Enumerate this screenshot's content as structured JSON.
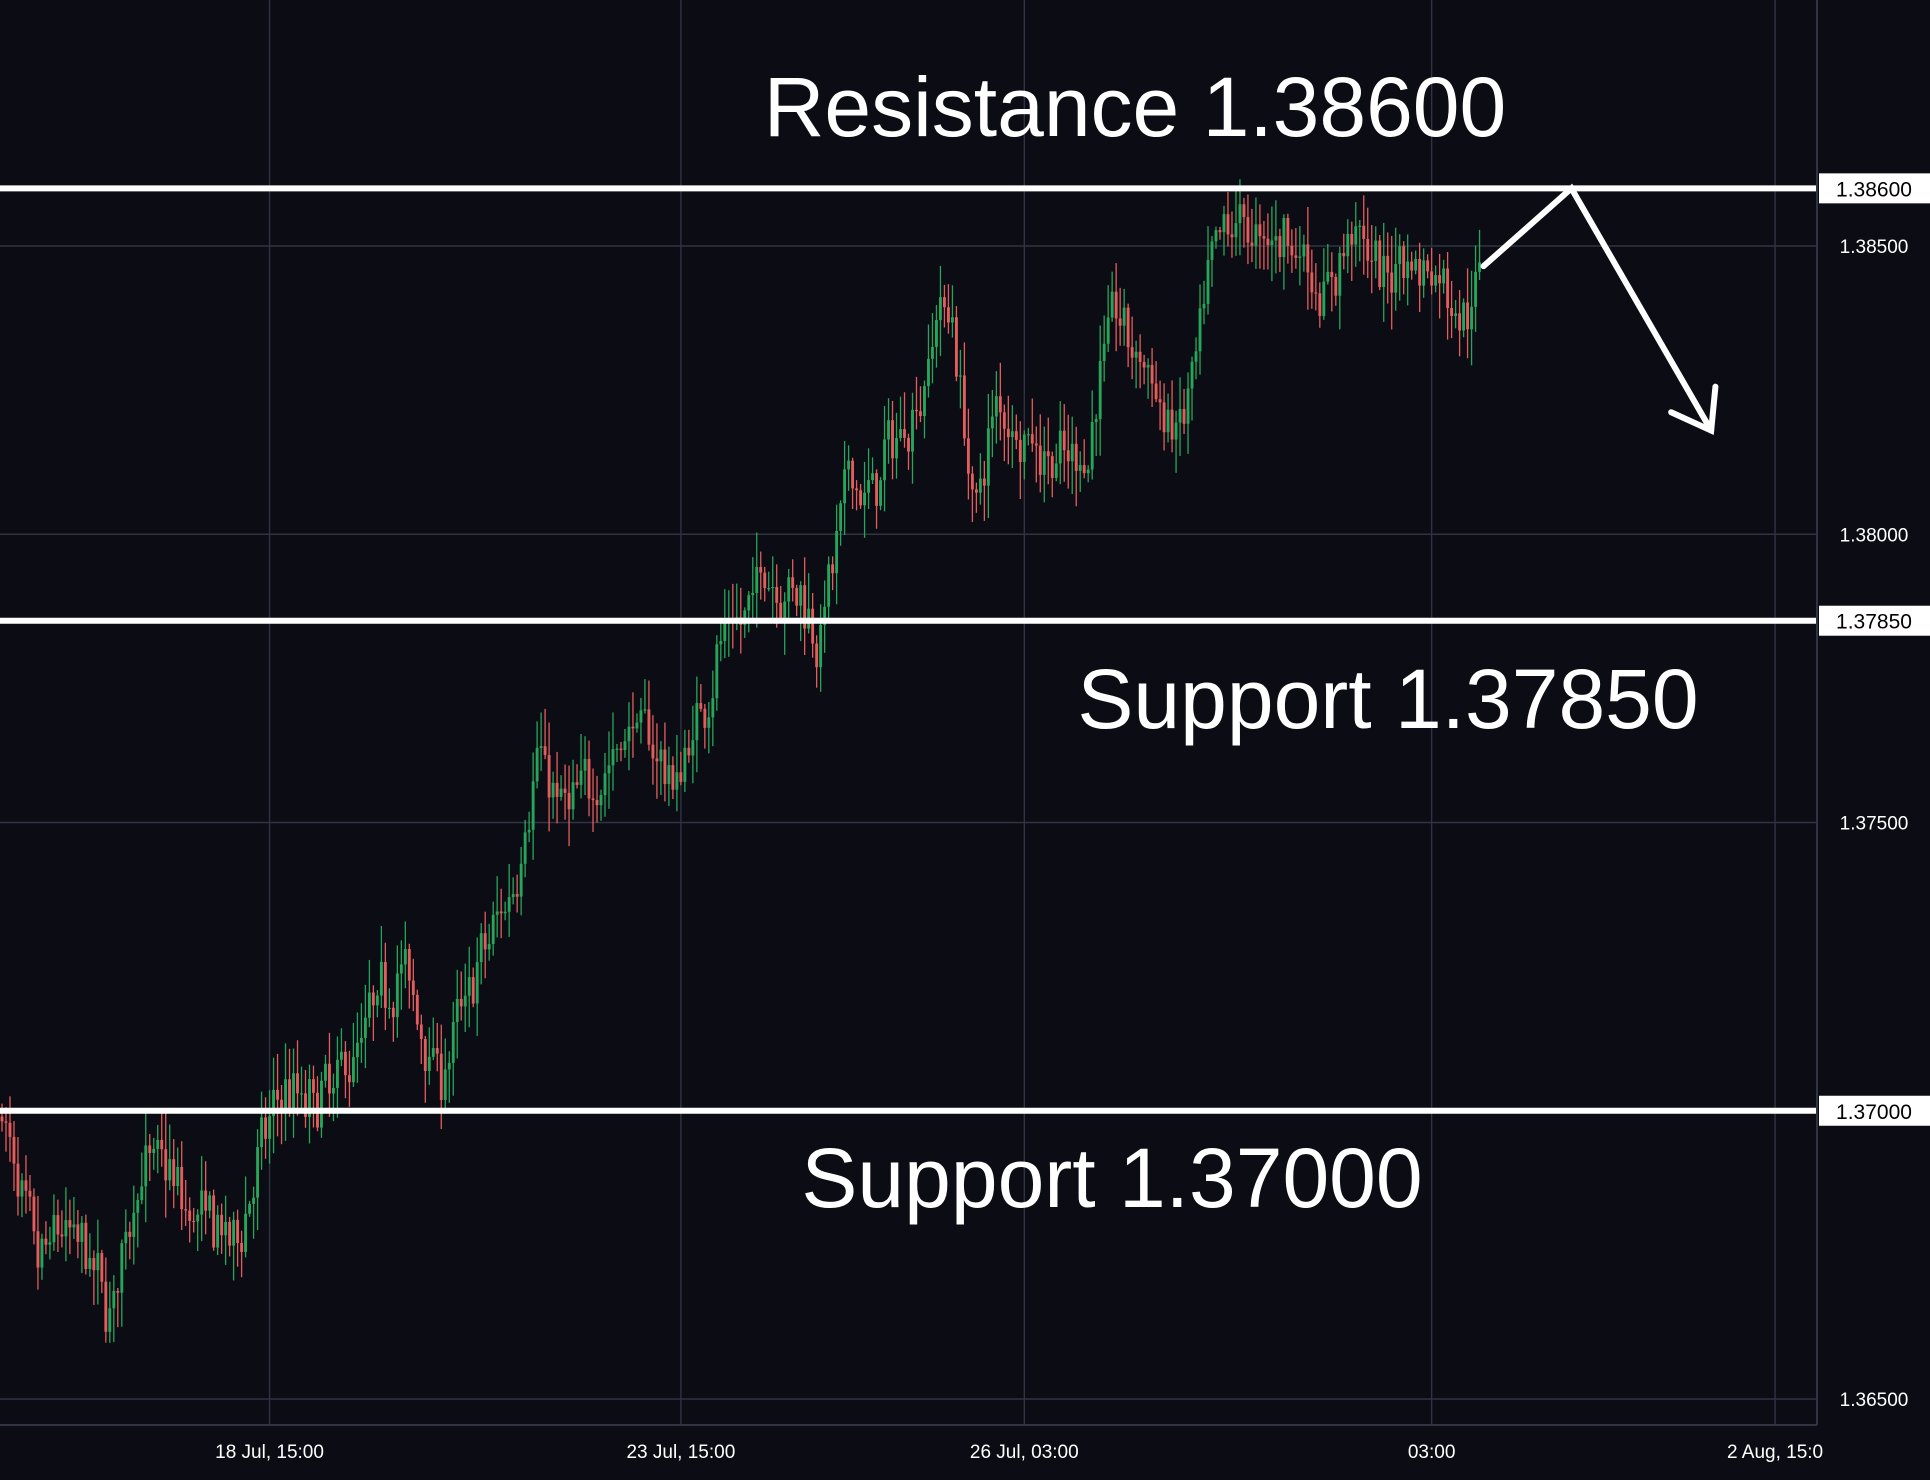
{
  "colors": {
    "background": "#0c0c14",
    "grid": "#2f3342",
    "bullish": "#26a65b",
    "bearish": "#e35d5d",
    "level_line": "#ffffff",
    "text": "#ffffff"
  },
  "chart_data": {
    "type": "candlestick",
    "title": "",
    "xlabel": "",
    "ylabel": "",
    "ylim": [
      1.3643,
      1.3892
    ],
    "grid": true,
    "y_ticks": [
      "1.38500",
      "1.38000",
      "1.37500",
      "1.36500"
    ],
    "x_ticks": [
      {
        "label": "18 Jul, 15:00",
        "bar": 67
      },
      {
        "label": "23 Jul, 15:00",
        "bar": 170
      },
      {
        "label": "26 Jul, 03:00",
        "bar": 256
      },
      {
        "label": "03:00",
        "bar": 358
      },
      {
        "label": "2 Aug, 15:0",
        "bar": 444
      }
    ],
    "bars_total": 455,
    "levels": [
      {
        "value": 1.386,
        "tag": "1.38600",
        "annotation": "Resistance 1.38600"
      },
      {
        "value": 1.3785,
        "tag": "1.37850",
        "annotation": "Support 1.37850"
      },
      {
        "value": 1.37,
        "tag": "1.37000",
        "annotation": "Support 1.37000"
      }
    ],
    "anchors": [
      [
        0,
        1.3699
      ],
      [
        4,
        1.3685
      ],
      [
        9,
        1.3673
      ],
      [
        14,
        1.368
      ],
      [
        20,
        1.3676
      ],
      [
        27,
        1.3665
      ],
      [
        34,
        1.3689
      ],
      [
        40,
        1.3692
      ],
      [
        46,
        1.3682
      ],
      [
        52,
        1.3681
      ],
      [
        58,
        1.3676
      ],
      [
        64,
        1.3692
      ],
      [
        70,
        1.3704
      ],
      [
        76,
        1.3701
      ],
      [
        82,
        1.3704
      ],
      [
        88,
        1.371
      ],
      [
        94,
        1.372
      ],
      [
        100,
        1.3725
      ],
      [
        106,
        1.3712
      ],
      [
        110,
        1.3706
      ],
      [
        116,
        1.372
      ],
      [
        122,
        1.373
      ],
      [
        128,
        1.374
      ],
      [
        134,
        1.3762
      ],
      [
        140,
        1.3752
      ],
      [
        146,
        1.3756
      ],
      [
        152,
        1.376
      ],
      [
        158,
        1.3768
      ],
      [
        164,
        1.3762
      ],
      [
        168,
        1.3756
      ],
      [
        172,
        1.3764
      ],
      [
        176,
        1.3772
      ],
      [
        180,
        1.3782
      ],
      [
        186,
        1.3785
      ],
      [
        190,
        1.3795
      ],
      [
        196,
        1.379
      ],
      [
        200,
        1.379
      ],
      [
        204,
        1.3782
      ],
      [
        208,
        1.3795
      ],
      [
        212,
        1.3812
      ],
      [
        216,
        1.3805
      ],
      [
        222,
        1.3815
      ],
      [
        226,
        1.3819
      ],
      [
        230,
        1.3824
      ],
      [
        234,
        1.384
      ],
      [
        238,
        1.3838
      ],
      [
        240,
        1.3822
      ],
      [
        242,
        1.381
      ],
      [
        244,
        1.3803
      ],
      [
        246,
        1.3815
      ],
      [
        249,
        1.3823
      ],
      [
        252,
        1.382
      ],
      [
        256,
        1.3817
      ],
      [
        262,
        1.3813
      ],
      [
        268,
        1.3812
      ],
      [
        272,
        1.3815
      ],
      [
        275,
        1.383
      ],
      [
        278,
        1.384
      ],
      [
        282,
        1.3833
      ],
      [
        286,
        1.383
      ],
      [
        290,
        1.382
      ],
      [
        295,
        1.3818
      ],
      [
        299,
        1.383
      ],
      [
        302,
        1.3845
      ],
      [
        306,
        1.3853
      ],
      [
        310,
        1.3855
      ],
      [
        314,
        1.385
      ],
      [
        318,
        1.3852
      ],
      [
        322,
        1.3852
      ],
      [
        326,
        1.3848
      ],
      [
        330,
        1.384
      ],
      [
        334,
        1.3845
      ],
      [
        338,
        1.3855
      ],
      [
        342,
        1.3848
      ],
      [
        346,
        1.3843
      ],
      [
        350,
        1.385
      ],
      [
        354,
        1.3846
      ],
      [
        358,
        1.3846
      ],
      [
        362,
        1.3842
      ],
      [
        366,
        1.3837
      ],
      [
        370,
        1.3845
      ]
    ],
    "forecast_path": [
      {
        "bar": 371,
        "price": 1.38465
      },
      {
        "bar": 393,
        "price": 1.386
      },
      {
        "bar": 428,
        "price": 1.3818
      }
    ]
  }
}
